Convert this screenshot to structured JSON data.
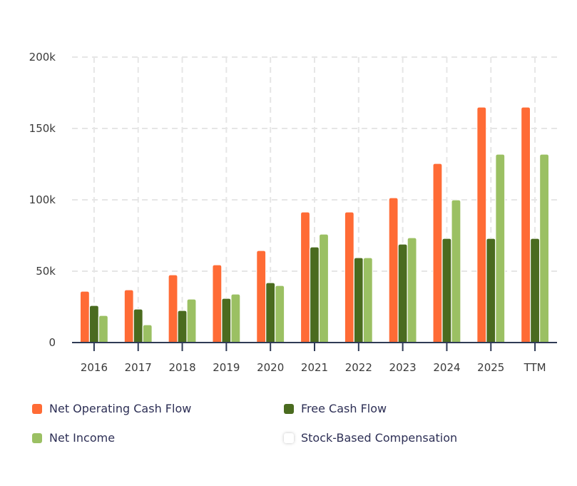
{
  "chart_data": {
    "type": "bar",
    "title": "",
    "xlabel": "",
    "ylabel": "",
    "ylim": [
      0,
      200000
    ],
    "yticks": [
      0,
      50000,
      100000,
      150000,
      200000
    ],
    "ytick_labels": [
      "0",
      "50k",
      "100k",
      "150k",
      "200k"
    ],
    "grid": true,
    "legend_position": "bottom",
    "categories": [
      "2016",
      "2017",
      "2018",
      "2019",
      "2020",
      "2021",
      "2022",
      "2023",
      "2024",
      "2025",
      "TTM"
    ],
    "series": [
      {
        "name": "Net Operating Cash Flow",
        "color": "#FF6B35",
        "values": [
          36000,
          37000,
          47500,
          54500,
          64500,
          91500,
          91500,
          101500,
          125500,
          165000,
          165000
        ]
      },
      {
        "name": "Free Cash Flow",
        "color": "#4A6B1F",
        "values": [
          26000,
          23500,
          22500,
          31000,
          42000,
          67000,
          59500,
          69000,
          73000,
          73000,
          73000
        ]
      },
      {
        "name": "Net Income",
        "color": "#9BC063",
        "values": [
          19000,
          12500,
          30500,
          34000,
          40000,
          76000,
          59500,
          73500,
          100000,
          132000,
          132000
        ]
      },
      {
        "name": "Stock-Based Compensation",
        "color": "#FFFFFF",
        "values": [],
        "hidden": true
      }
    ]
  },
  "legend": [
    {
      "label": "Net Operating Cash Flow",
      "color": "#FF6B35"
    },
    {
      "label": "Free Cash Flow",
      "color": "#4A6B1F"
    },
    {
      "label": "Net Income",
      "color": "#9BC063"
    },
    {
      "label": "Stock-Based Compensation",
      "color": "#FFFFFF"
    }
  ]
}
